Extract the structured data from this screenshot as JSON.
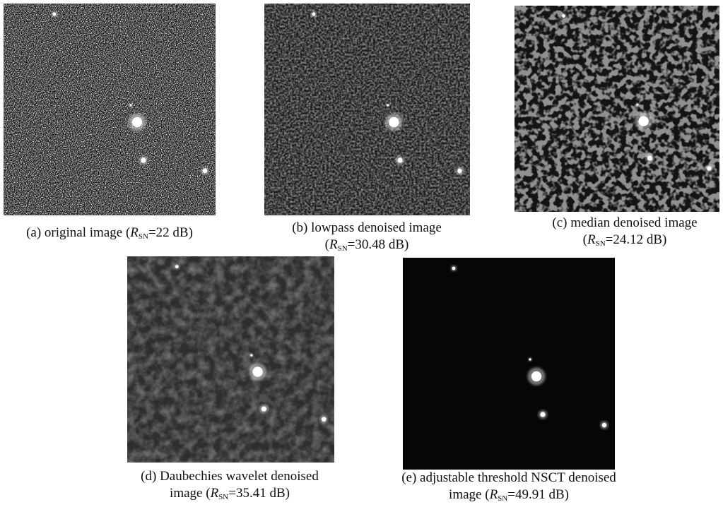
{
  "panels": [
    {
      "caption": {
        "text": "(a) original image",
        "prefix": "(",
        "symbol": "R",
        "subscript": "SN",
        "suffix": "=22 dB)"
      }
    },
    {
      "caption": {
        "text": "(b) lowpass denoised image",
        "prefix": "(",
        "symbol": "R",
        "subscript": "SN",
        "suffix": "=30.48 dB)"
      }
    },
    {
      "caption": {
        "text": "(c) median denoised image",
        "prefix": "(",
        "symbol": "R",
        "subscript": "SN",
        "suffix": "=24.12 dB)"
      }
    },
    {
      "caption": {
        "text": "(d) Daubechies wavelet denoised",
        "prefix": "image (",
        "symbol": "R",
        "subscript": "SN",
        "suffix": "=35.41 dB)"
      }
    },
    {
      "caption": {
        "text": "(e) adjustable threshold NSCT denoised",
        "prefix": "image (",
        "symbol": "R",
        "subscript": "SN",
        "suffix": "=49.91 dB)"
      }
    }
  ]
}
